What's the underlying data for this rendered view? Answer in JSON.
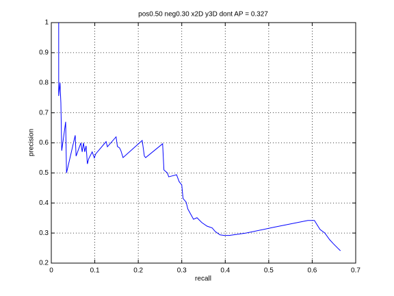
{
  "chart_data": {
    "type": "line",
    "title": "pos0.50 neg0.30 x2D y3D dont AP = 0.327",
    "xlabel": "recall",
    "ylabel": "precision",
    "xlim": [
      0,
      0.7
    ],
    "ylim": [
      0.2,
      1
    ],
    "xticks": [
      0,
      0.1,
      0.2,
      0.3,
      0.4,
      0.5,
      0.6,
      0.7
    ],
    "yticks": [
      0.2,
      0.3,
      0.4,
      0.5,
      0.6,
      0.7,
      0.8,
      0.9,
      1
    ],
    "grid": true,
    "x": [
      0.017,
      0.017,
      0.02,
      0.022,
      0.024,
      0.033,
      0.035,
      0.055,
      0.057,
      0.068,
      0.071,
      0.074,
      0.077,
      0.08,
      0.083,
      0.086,
      0.094,
      0.099,
      0.102,
      0.126,
      0.129,
      0.149,
      0.152,
      0.157,
      0.16,
      0.165,
      0.209,
      0.214,
      0.217,
      0.256,
      0.259,
      0.267,
      0.27,
      0.288,
      0.294,
      0.3,
      0.303,
      0.31,
      0.314,
      0.327,
      0.335,
      0.346,
      0.358,
      0.37,
      0.377,
      0.388,
      0.398,
      0.409,
      0.448,
      0.511,
      0.59,
      0.605,
      0.618,
      0.629,
      0.64,
      0.649,
      0.66,
      0.665
    ],
    "series": [
      {
        "name": "precision",
        "color": "#0000ff",
        "values": [
          1.0,
          0.756,
          0.8,
          0.733,
          0.574,
          0.67,
          0.5,
          0.625,
          0.556,
          0.6,
          0.57,
          0.6,
          0.57,
          0.59,
          0.53,
          0.547,
          0.57,
          0.55,
          0.563,
          0.604,
          0.587,
          0.62,
          0.588,
          0.583,
          0.574,
          0.551,
          0.608,
          0.556,
          0.551,
          0.597,
          0.51,
          0.5,
          0.487,
          0.494,
          0.471,
          0.46,
          0.415,
          0.403,
          0.38,
          0.346,
          0.351,
          0.335,
          0.323,
          0.317,
          0.305,
          0.294,
          0.292,
          0.292,
          0.3,
          0.319,
          0.342,
          0.342,
          0.312,
          0.3,
          0.278,
          0.264,
          0.248,
          0.241
        ]
      }
    ]
  }
}
